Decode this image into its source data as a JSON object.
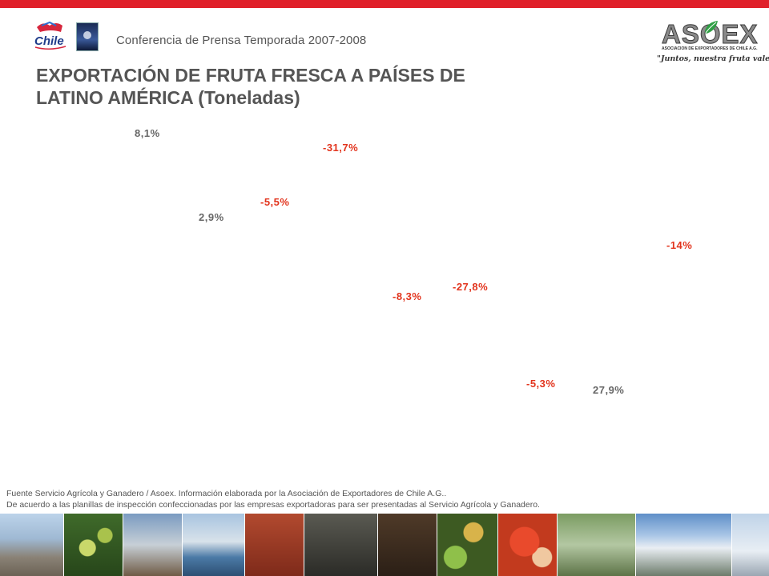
{
  "header": {
    "conference": "Conferencia de Prensa Temporada 2007-2008",
    "chile_logo_text": "Chile",
    "asoex_logo_text": "ASOEX",
    "asoex_subtitle": "ASOCIACION DE EXPORTADORES DE CHILE A.G.",
    "asoex_slogan": "\"Juntos, nuestra fruta vale más\""
  },
  "title_line1": "EXPORTACIÓN DE FRUTA FRESCA A PAÍSES DE",
  "title_line2": "LATINO AMÉRICA (Toneladas)",
  "percentages": [
    {
      "label": "8,1%",
      "trend": "positive"
    },
    {
      "label": "2,9%",
      "trend": "positive"
    },
    {
      "label": "-5,5%",
      "trend": "negative"
    },
    {
      "label": "-31,7%",
      "trend": "negative"
    },
    {
      "label": "-8,3%",
      "trend": "negative"
    },
    {
      "label": "-27,8%",
      "trend": "negative"
    },
    {
      "label": "-5,3%",
      "trend": "negative"
    },
    {
      "label": "27,9%",
      "trend": "positive"
    },
    {
      "label": "-14%",
      "trend": "negative"
    }
  ],
  "footnote": {
    "line1": "Fuente Servicio Agrícola y Ganadero / Asoex. Información elaborada por la Asociación de Exportadores de Chile A.G..",
    "line2": "De acuerdo a las planillas de inspección confeccionadas por las empresas exportadoras  para ser presentadas al Servicio Agrícola y Ganadero."
  },
  "colors": {
    "top_bar": "#e0202a",
    "positive_text": "#666666",
    "negative_text": "#e2341d"
  }
}
